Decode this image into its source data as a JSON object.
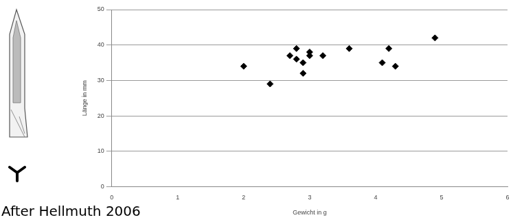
{
  "chart_data": {
    "type": "scatter",
    "x": [
      2.0,
      2.4,
      2.7,
      2.8,
      2.8,
      2.9,
      2.9,
      3.0,
      3.0,
      3.2,
      3.6,
      4.1,
      4.2,
      4.3,
      4.9
    ],
    "values": [
      34,
      29,
      37,
      39,
      36,
      35,
      32,
      38,
      37,
      37,
      39,
      35,
      39,
      34,
      42
    ],
    "x_label": "Gewicht in g",
    "y_label": "Länge in mm",
    "xlim": [
      0,
      6
    ],
    "xticks": [
      0,
      1,
      2,
      3,
      4,
      5,
      6
    ],
    "ylim": [
      0,
      50
    ],
    "yticks": [
      0,
      10,
      20,
      30,
      40,
      50
    ],
    "color": "#000000",
    "marker": "diamond",
    "grid": true,
    "caption": "After Hellmuth 2006"
  }
}
